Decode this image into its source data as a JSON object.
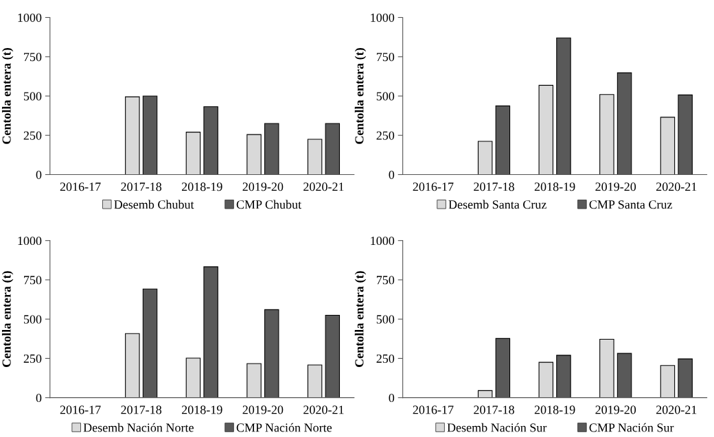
{
  "chart_data": [
    {
      "type": "bar",
      "ylabel": "Centolla entera (t)",
      "categories": [
        "2016-17",
        "2017-18",
        "2018-19",
        "2019-20",
        "2020-21"
      ],
      "ylim": [
        0,
        1000
      ],
      "yticks": [
        0,
        250,
        500,
        750,
        1000
      ],
      "legend": "bottom",
      "grid": false,
      "series": [
        {
          "name": "Desemb Chubut",
          "color": "#d9d9d9",
          "values": [
            null,
            495,
            270,
            255,
            225
          ]
        },
        {
          "name": "CMP Chubut",
          "color": "#595959",
          "values": [
            null,
            500,
            432,
            325,
            325
          ]
        }
      ]
    },
    {
      "type": "bar",
      "ylabel": "Centolla entera (t)",
      "categories": [
        "2016-17",
        "2017-18",
        "2018-19",
        "2019-20",
        "2020-21"
      ],
      "ylim": [
        0,
        1000
      ],
      "yticks": [
        0,
        250,
        500,
        750,
        1000
      ],
      "legend": "bottom",
      "grid": false,
      "series": [
        {
          "name": "Desemb Santa Cruz",
          "color": "#d9d9d9",
          "values": [
            null,
            212,
            568,
            510,
            365
          ]
        },
        {
          "name": "CMP Santa Cruz",
          "color": "#595959",
          "values": [
            null,
            437,
            870,
            648,
            507
          ]
        }
      ]
    },
    {
      "type": "bar",
      "ylabel": "Centolla entera (t)",
      "categories": [
        "2016-17",
        "2017-18",
        "2018-19",
        "2019-20",
        "2020-21"
      ],
      "ylim": [
        0,
        1000
      ],
      "yticks": [
        0,
        250,
        500,
        750,
        1000
      ],
      "legend": "bottom",
      "grid": false,
      "series": [
        {
          "name": "Desemb Nación Norte",
          "color": "#d9d9d9",
          "values": [
            null,
            408,
            252,
            217,
            208
          ]
        },
        {
          "name": "CMP Nación Norte",
          "color": "#595959",
          "values": [
            null,
            692,
            833,
            560,
            525
          ]
        }
      ]
    },
    {
      "type": "bar",
      "ylabel": "Centolla entera (t)",
      "categories": [
        "2016-17",
        "2017-18",
        "2018-19",
        "2019-20",
        "2020-21"
      ],
      "ylim": [
        0,
        1000
      ],
      "yticks": [
        0,
        250,
        500,
        750,
        1000
      ],
      "legend": "bottom",
      "grid": false,
      "series": [
        {
          "name": "Desemb Nación Sur",
          "color": "#d9d9d9",
          "values": [
            null,
            45,
            225,
            372,
            205
          ]
        },
        {
          "name": "CMP Nación Sur",
          "color": "#595959",
          "values": [
            null,
            377,
            270,
            282,
            247
          ]
        }
      ]
    }
  ]
}
